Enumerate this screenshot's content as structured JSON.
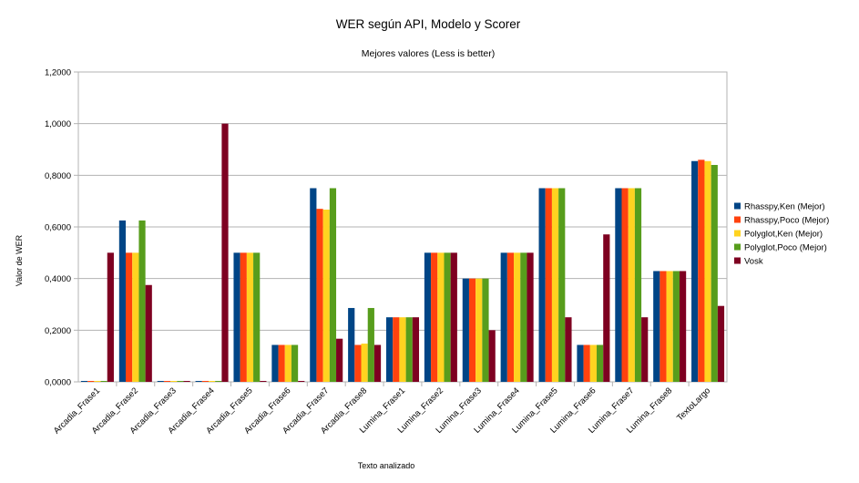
{
  "chart_data": {
    "type": "bar",
    "title": "WER según API, Modelo y Scorer",
    "subtitle": "Mejores valores (Less is better)",
    "xlabel": "Texto analizado",
    "ylabel": "Valor de WER",
    "ylim": [
      0,
      1.2
    ],
    "yticks": [
      0,
      0.2,
      0.4,
      0.6,
      0.8,
      1.0,
      1.2
    ],
    "ytick_labels": [
      "0,0000",
      "0,2000",
      "0,4000",
      "0,6000",
      "0,8000",
      "1,0000",
      "1,2000"
    ],
    "grid": true,
    "legend_position": "right",
    "categories": [
      "Arcadia_Frase1",
      "Arcadia_Frase2",
      "Arcadia_Frase3",
      "Arcadia_Frase4",
      "Arcadia_Frase5",
      "Arcadia_Frase6",
      "Arcadia_Frase7",
      "Arcadia_Frase8",
      "Lumina_Frase1",
      "Lumina_Frase2",
      "Lumina_Frase3",
      "Lumina_Frase4",
      "Lumina_Frase5",
      "Lumina_Frase6",
      "Lumina_Frase7",
      "Lumina_Frase8",
      "TextoLargo"
    ],
    "series": [
      {
        "name": "Rhasspy,Ken (Mejor)",
        "color": "#004586",
        "values": [
          0.002,
          0.625,
          0.002,
          0.002,
          0.5,
          0.143,
          0.75,
          0.286,
          0.25,
          0.5,
          0.4,
          0.5,
          0.75,
          0.143,
          0.75,
          0.429,
          0.855
        ]
      },
      {
        "name": "Rhasspy,Poco (Mejor)",
        "color": "#ff420e",
        "values": [
          0.002,
          0.5,
          0.002,
          0.002,
          0.5,
          0.143,
          0.67,
          0.143,
          0.25,
          0.5,
          0.4,
          0.5,
          0.75,
          0.143,
          0.75,
          0.429,
          0.86
        ]
      },
      {
        "name": "Polyglot,Ken (Mejor)",
        "color": "#ffd320",
        "values": [
          0.002,
          0.5,
          0.002,
          0.002,
          0.5,
          0.143,
          0.667,
          0.148,
          0.25,
          0.5,
          0.4,
          0.5,
          0.75,
          0.143,
          0.75,
          0.429,
          0.855
        ]
      },
      {
        "name": "Polyglot,Poco (Mejor)",
        "color": "#579d1c",
        "values": [
          0.002,
          0.625,
          0.002,
          0.002,
          0.5,
          0.143,
          0.75,
          0.286,
          0.25,
          0.5,
          0.4,
          0.5,
          0.75,
          0.143,
          0.75,
          0.429,
          0.84
        ]
      },
      {
        "name": "Vosk",
        "color": "#7e0021",
        "values": [
          0.5,
          0.375,
          0.002,
          1.0,
          0.002,
          0.002,
          0.167,
          0.143,
          0.25,
          0.5,
          0.2,
          0.5,
          0.25,
          0.571,
          0.25,
          0.429,
          0.294
        ]
      }
    ]
  }
}
